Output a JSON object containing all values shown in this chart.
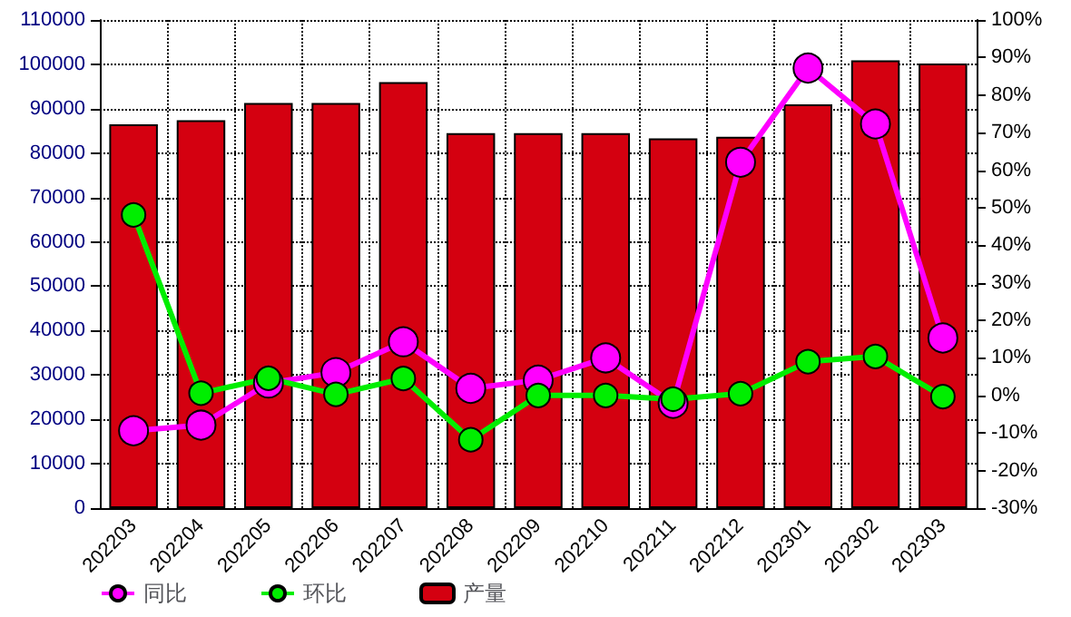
{
  "chart_data": {
    "type": "bar",
    "categories": [
      "202203",
      "202204",
      "202205",
      "202206",
      "202207",
      "202208",
      "202209",
      "202210",
      "202211",
      "202212",
      "202301",
      "202302",
      "202303"
    ],
    "series": [
      {
        "name": "同比",
        "type": "line",
        "axis": "y2",
        "color": "#ff00ff",
        "values": [
          -9.4,
          -7.9,
          3.3,
          6.1,
          14.3,
          1.9,
          4.1,
          10.0,
          -2.1,
          62.1,
          87.2,
          72.3,
          15.3
        ]
      },
      {
        "name": "环比",
        "type": "line",
        "axis": "y2",
        "color": "#00ee00",
        "values": [
          48.1,
          0.6,
          4.6,
          0.3,
          4.5,
          -11.8,
          0,
          0,
          -1.0,
          0.5,
          9.0,
          10.4,
          -0.3
        ]
      },
      {
        "name": "产量",
        "color": "#d40010",
        "values": [
          86500,
          87400,
          91300,
          91300,
          96000,
          84500,
          84500,
          84500,
          83300,
          83700,
          91000,
          100900,
          100200
        ]
      }
    ],
    "ylim": [
      0,
      110000
    ],
    "yticks": [
      0,
      10000,
      20000,
      30000,
      40000,
      50000,
      60000,
      70000,
      80000,
      90000,
      100000,
      110000
    ],
    "y2lim": [
      -30,
      100
    ],
    "y2ticks": [
      {
        "value": -30,
        "label": "-30%"
      },
      {
        "value": -20,
        "label": "-20%"
      },
      {
        "value": -10,
        "label": "-10%"
      },
      {
        "value": 0,
        "label": "0%"
      },
      {
        "value": 10,
        "label": "10%"
      },
      {
        "value": 20,
        "label": "20%"
      },
      {
        "value": 30,
        "label": "30%"
      },
      {
        "value": 40,
        "label": "40%"
      },
      {
        "value": 50,
        "label": "50%"
      },
      {
        "value": 60,
        "label": "60%"
      },
      {
        "value": 70,
        "label": "70%"
      },
      {
        "value": 80,
        "label": "80%"
      },
      {
        "value": 90,
        "label": "90%"
      },
      {
        "value": 100,
        "label": "100%"
      }
    ],
    "grid": true,
    "legend": "bottom left",
    "marker": "circle",
    "line_style": "solid"
  }
}
